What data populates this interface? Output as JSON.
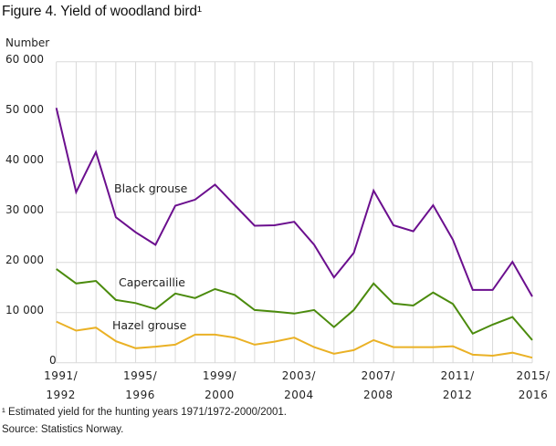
{
  "figure": {
    "title": "Figure 4. Yield of woodland bird¹",
    "y_axis_label": "Number",
    "footnote": "¹ Estimated yield for the hunting  years 1971/1972-2000/2001.",
    "source": "Source: Statistics Norway."
  },
  "y_ticks": [
    "60 000",
    "50 000",
    "40 000",
    "30 000",
    "20 000",
    "10 000",
    "0"
  ],
  "x_ticks": [
    {
      "line1": "1991/",
      "line2": "1992",
      "index": 0
    },
    {
      "line1": "1995/",
      "line2": "1996",
      "index": 4
    },
    {
      "line1": "1999/",
      "line2": "2000",
      "index": 8
    },
    {
      "line1": "2003/",
      "line2": "2004",
      "index": 12
    },
    {
      "line1": "2007/",
      "line2": "2008",
      "index": 16
    },
    {
      "line1": "2011/",
      "line2": "2012",
      "index": 20
    },
    {
      "line1": "2015/",
      "line2": "2016",
      "index": 24
    }
  ],
  "series_labels": {
    "black_grouse": "Black grouse",
    "capercaillie": "Capercaillie",
    "hazel_grouse": "Hazel grouse"
  },
  "colors": {
    "black_grouse": "#6b0f8e",
    "capercaillie": "#4b8b0d",
    "hazel_grouse": "#eab125",
    "grid": "#d9d9d9"
  },
  "chart_data": {
    "type": "line",
    "title": "Figure 4. Yield of woodland bird¹",
    "xlabel": "",
    "ylabel": "Number",
    "ylim": [
      0,
      60000
    ],
    "grid": true,
    "legend_position": "inline labels",
    "x": [
      "1991/1992",
      "1992/1993",
      "1993/1994",
      "1994/1995",
      "1995/1996",
      "1996/1997",
      "1997/1998",
      "1998/1999",
      "1999/2000",
      "2000/2001",
      "2001/2002",
      "2002/2003",
      "2003/2004",
      "2004/2005",
      "2005/2006",
      "2006/2007",
      "2007/2008",
      "2008/2009",
      "2009/2010",
      "2010/2011",
      "2011/2012",
      "2012/2013",
      "2013/2014",
      "2014/2015",
      "2015/2016"
    ],
    "series": [
      {
        "name": "Black grouse",
        "values": [
          50800,
          34000,
          42000,
          29000,
          26000,
          23500,
          31300,
          32500,
          35500,
          31400,
          27300,
          27400,
          28100,
          23500,
          17000,
          21900,
          34300,
          27400,
          26200,
          31400,
          24500,
          14500,
          14500,
          20100,
          13200
        ]
      },
      {
        "name": "Capercaillie",
        "values": [
          18700,
          15800,
          16300,
          12500,
          11900,
          10700,
          13800,
          12900,
          14700,
          13500,
          10500,
          10200,
          9800,
          10500,
          7100,
          10500,
          15800,
          11800,
          11400,
          14000,
          11700,
          5800,
          7600,
          9100,
          4500
        ]
      },
      {
        "name": "Hazel grouse",
        "values": [
          8200,
          6400,
          7000,
          4300,
          2900,
          3200,
          3600,
          5600,
          5600,
          5000,
          3600,
          4200,
          5000,
          3100,
          1800,
          2500,
          4500,
          3100,
          3100,
          3100,
          3300,
          1600,
          1400,
          2000,
          1000
        ]
      }
    ],
    "annotations": [
      "Black grouse",
      "Capercaillie",
      "Hazel grouse"
    ],
    "footnote": "¹ Estimated yield for the hunting years 1971/1972-2000/2001.",
    "source": "Source: Statistics Norway."
  }
}
